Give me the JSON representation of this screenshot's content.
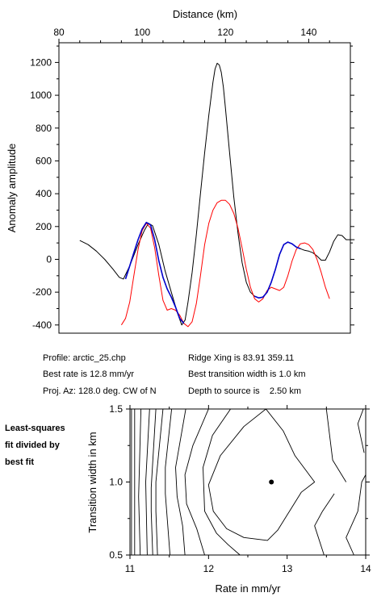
{
  "colors": {
    "observed": "#000000",
    "model": "#ff0000",
    "fit_segment": "#0000cc",
    "axis": "#000000"
  },
  "chart_data": [
    {
      "type": "line",
      "title": "",
      "xlabel": "Distance (km)",
      "ylabel": "Anomaly amplitude",
      "xlim": [
        80,
        150
      ],
      "ylim": [
        -450,
        1320
      ],
      "xticks": [
        80,
        100,
        120,
        140
      ],
      "yticks": [
        -400,
        -200,
        0,
        200,
        400,
        600,
        800,
        1000,
        1200
      ],
      "grid": false,
      "series": [
        {
          "color": "#000000",
          "x": [
            85,
            87,
            89,
            91,
            93,
            94.5,
            95.5,
            97,
            99,
            100.5,
            101.5,
            102.5,
            104,
            105.5,
            107,
            108.5,
            109.5,
            110.3,
            111,
            112,
            113,
            114,
            115,
            116,
            117,
            117.5,
            118,
            118.5,
            119,
            119.5,
            120,
            121,
            122,
            123,
            124,
            125,
            126,
            127,
            128,
            129,
            130,
            131,
            132,
            133,
            134,
            135,
            136,
            137,
            138,
            139,
            140,
            141,
            142,
            143,
            144,
            145,
            146,
            147,
            148,
            149,
            150,
            151
          ],
          "y": [
            115,
            90,
            50,
            0,
            -60,
            -110,
            -120,
            -40,
            90,
            175,
            220,
            205,
            90,
            -70,
            -200,
            -330,
            -400,
            -370,
            -260,
            -80,
            150,
            400,
            650,
            880,
            1080,
            1160,
            1195,
            1185,
            1140,
            1050,
            920,
            650,
            380,
            160,
            -20,
            -140,
            -200,
            -225,
            -235,
            -230,
            -200,
            -140,
            -60,
            30,
            90,
            105,
            95,
            75,
            65,
            55,
            50,
            40,
            20,
            -5,
            -5,
            45,
            110,
            150,
            145,
            120,
            120,
            120
          ]
        },
        {
          "color": "#ff0000",
          "x": [
            95,
            96,
            97,
            98,
            99,
            100,
            101,
            102,
            103,
            104,
            105,
            106,
            107,
            108,
            109,
            110,
            111,
            112,
            113,
            114,
            115,
            116,
            117,
            118,
            119,
            120,
            121,
            122,
            123,
            124,
            125,
            126,
            127,
            128,
            129,
            130,
            131,
            132,
            133,
            134,
            135,
            136,
            137,
            138,
            139,
            140,
            141,
            142,
            143,
            144,
            145
          ],
          "y": [
            -400,
            -360,
            -260,
            -100,
            60,
            175,
            220,
            190,
            70,
            -100,
            -250,
            -310,
            -300,
            -310,
            -340,
            -390,
            -410,
            -380,
            -270,
            -100,
            90,
            220,
            300,
            345,
            360,
            360,
            335,
            280,
            190,
            70,
            -60,
            -170,
            -240,
            -260,
            -240,
            -190,
            -170,
            -180,
            -190,
            -170,
            -100,
            -10,
            60,
            95,
            100,
            90,
            60,
            0,
            -80,
            -170,
            -240
          ]
        },
        {
          "color": "#0000cc",
          "x": [
            96,
            97,
            98,
            99,
            100,
            101,
            102,
            103,
            104,
            105,
            106,
            107,
            108,
            109,
            110
          ],
          "y": [
            -120,
            -40,
            40,
            120,
            185,
            225,
            210,
            120,
            -10,
            -110,
            -180,
            -230,
            -290,
            -360,
            -390
          ]
        },
        {
          "color": "#0000cc",
          "x": [
            127,
            128,
            129,
            130,
            131,
            132,
            133,
            134,
            135,
            136,
            137,
            138
          ],
          "y": [
            -225,
            -235,
            -230,
            -200,
            -140,
            -60,
            30,
            90,
            105,
            95,
            75,
            65
          ]
        }
      ]
    },
    {
      "type": "contour",
      "xlabel": "Rate in mm/yr",
      "ylabel": "Transition width in km",
      "xlim": [
        11,
        14
      ],
      "ylim": [
        0.5,
        1.5
      ],
      "xticks": [
        "11",
        "12",
        "13",
        "14"
      ],
      "yticks": [
        "0.5",
        "1.0",
        "1.5"
      ],
      "best_fit_point": {
        "x": 12.8,
        "y": 1.0
      },
      "contours": [
        [
          [
            11.02,
            1.5
          ],
          [
            11.02,
            0.5
          ]
        ],
        [
          [
            11.06,
            1.5
          ],
          [
            11.06,
            0.5
          ]
        ],
        [
          [
            11.14,
            1.5
          ],
          [
            11.11,
            0.9
          ],
          [
            11.13,
            0.5
          ]
        ],
        [
          [
            11.25,
            1.5
          ],
          [
            11.2,
            1.0
          ],
          [
            11.22,
            0.5
          ]
        ],
        [
          [
            11.33,
            1.5
          ],
          [
            11.27,
            0.96
          ],
          [
            11.27,
            0.8
          ],
          [
            11.29,
            0.5
          ]
        ],
        [
          [
            11.42,
            1.5
          ],
          [
            11.33,
            1.0
          ],
          [
            11.33,
            0.8
          ],
          [
            11.35,
            0.5
          ]
        ],
        [
          [
            11.53,
            1.5
          ],
          [
            11.45,
            1.1
          ],
          [
            11.45,
            0.92
          ],
          [
            11.51,
            0.5
          ]
        ],
        [
          [
            11.71,
            1.5
          ],
          [
            11.58,
            1.1
          ],
          [
            11.6,
            0.9
          ],
          [
            11.67,
            0.7
          ],
          [
            11.7,
            0.5
          ]
        ],
        [
          [
            12.0,
            1.5
          ],
          [
            11.8,
            1.25
          ],
          [
            11.7,
            1.05
          ],
          [
            11.72,
            0.85
          ],
          [
            11.85,
            0.68
          ],
          [
            11.95,
            0.5
          ]
        ],
        [
          [
            12.28,
            1.5
          ],
          [
            12.05,
            1.32
          ],
          [
            11.93,
            1.1
          ],
          [
            11.95,
            0.8
          ],
          [
            12.1,
            0.65
          ],
          [
            12.25,
            0.57
          ],
          [
            12.4,
            0.5
          ]
        ],
        [
          [
            12.73,
            1.5
          ],
          [
            12.45,
            1.38
          ],
          [
            12.15,
            1.18
          ],
          [
            12.0,
            0.98
          ],
          [
            12.06,
            0.8
          ],
          [
            12.23,
            0.68
          ],
          [
            12.45,
            0.62
          ],
          [
            12.75,
            0.6
          ],
          [
            12.88,
            0.67
          ],
          [
            13.03,
            0.8
          ],
          [
            13.18,
            0.93
          ],
          [
            13.35,
            1.0
          ],
          [
            13.1,
            1.18
          ],
          [
            12.95,
            1.35
          ],
          [
            12.73,
            1.5
          ]
        ],
        [
          [
            13.47,
            0.5
          ],
          [
            13.35,
            0.7
          ],
          [
            13.45,
            0.8
          ],
          [
            13.6,
            0.92
          ]
        ],
        [
          [
            13.85,
            0.5
          ],
          [
            13.75,
            0.62
          ],
          [
            13.9,
            0.8
          ],
          [
            13.95,
            1.0
          ],
          [
            14.0,
            1.05
          ]
        ],
        [
          [
            13.5,
            1.5
          ],
          [
            13.58,
            1.15
          ],
          [
            13.75,
            1.0
          ]
        ],
        [
          [
            13.97,
            1.5
          ],
          [
            13.9,
            1.4
          ],
          [
            13.98,
            1.2
          ]
        ]
      ]
    }
  ],
  "info": {
    "profile": "Profile: arctic_25.chp",
    "best_rate": "Best rate is 12.8 mm/yr",
    "proj_az": "Proj. Az: 128.0 deg. CW of N",
    "ridge_xing": "Ridge Xing is 83.91 359.11",
    "best_width": "Best transition width is 1.0 km",
    "depth": "Depth to source is    2.50 km"
  },
  "side_note": {
    "line1": "Least-squares",
    "line2": "fit divided by",
    "line3": "best fit"
  }
}
